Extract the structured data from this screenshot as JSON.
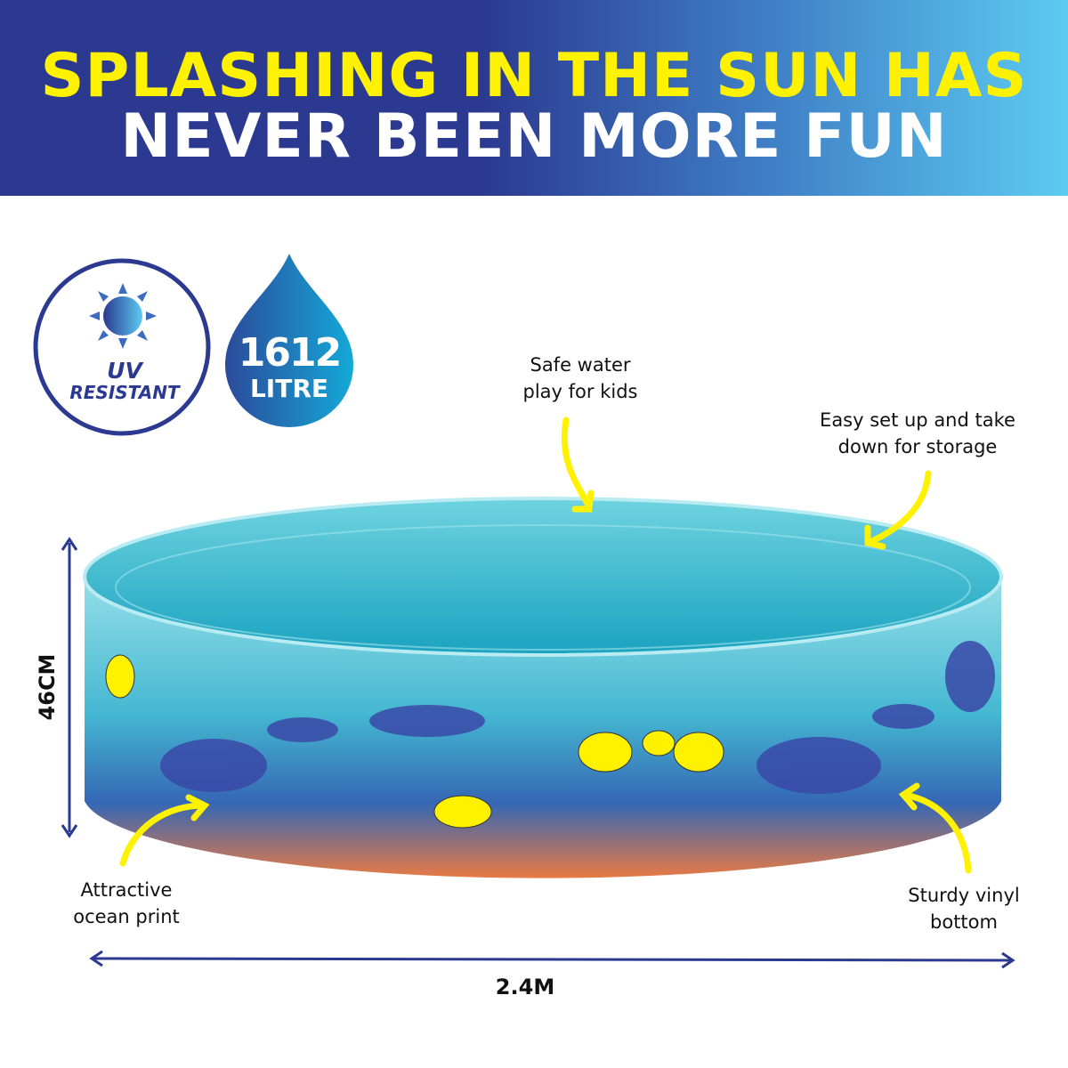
{
  "headline": {
    "line1": "SPLASHING IN THE SUN HAS",
    "line2": "NEVER BEEN MORE FUN"
  },
  "badges": {
    "uv": {
      "line1": "UV",
      "line2": "RESISTANT",
      "icon": "sun-icon"
    },
    "capacity": {
      "value": "1612",
      "unit": "LITRE",
      "icon": "water-drop-icon"
    }
  },
  "features": {
    "safe": "Safe water play for kids",
    "easy": "Easy set up and take down for storage",
    "print": "Attractive ocean print",
    "bottom": "Sturdy vinyl bottom"
  },
  "dimensions": {
    "height": "46CM",
    "width": "2.4M"
  },
  "colors": {
    "navy": "#2b3990",
    "yellow": "#fff200",
    "sky": "#5ccbf2"
  }
}
